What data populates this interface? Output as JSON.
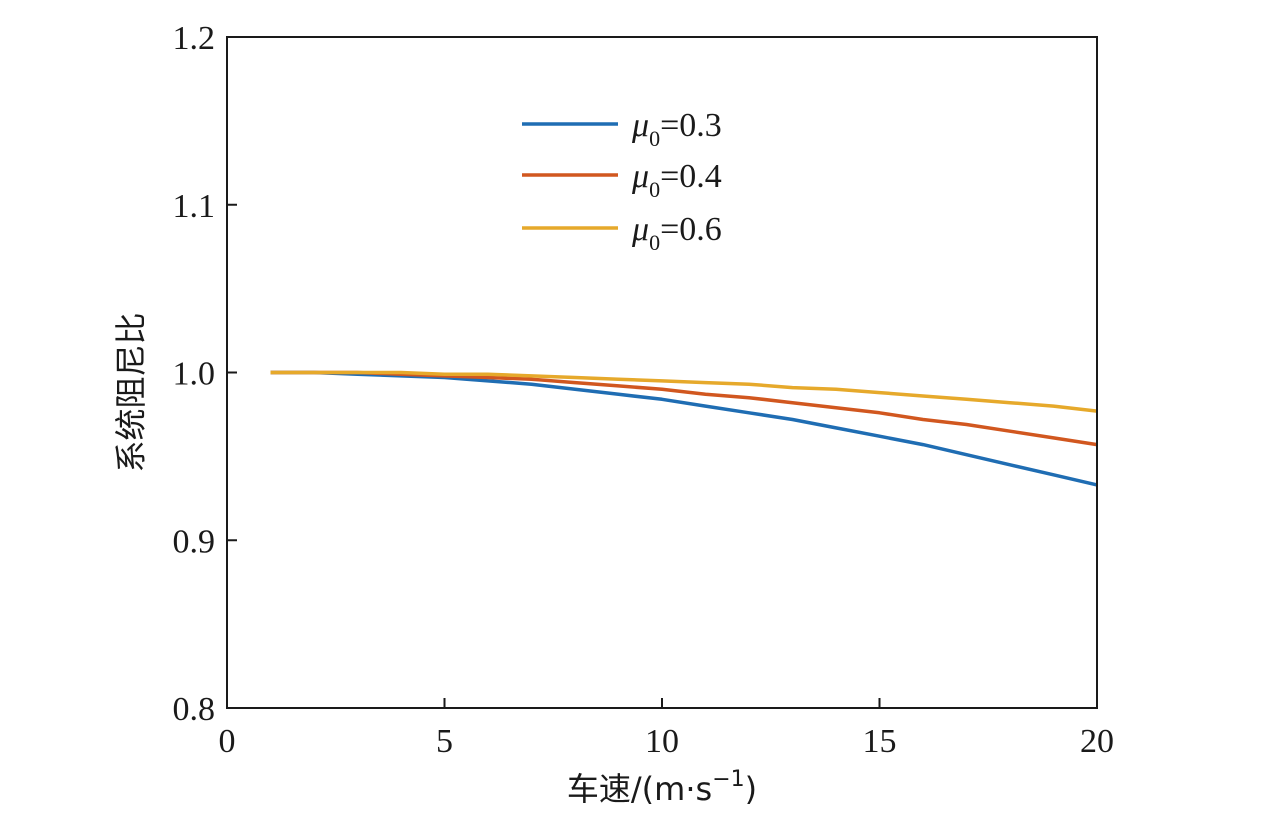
{
  "chart_data": {
    "type": "line",
    "title": "",
    "xlabel": "车速/(m·s",
    "xlabel_sup": "−1",
    "xlabel_close": ")",
    "ylabel": "系统阻尼比",
    "xlim": [
      0,
      20
    ],
    "ylim": [
      0.8,
      1.2
    ],
    "xticks": [
      0,
      5,
      10,
      15,
      20
    ],
    "xtick_labels": [
      "0",
      "5",
      "10",
      "15",
      "20"
    ],
    "yticks": [
      0.8,
      0.9,
      1.0,
      1.1,
      1.2
    ],
    "ytick_labels": [
      "0.8",
      "0.9",
      "1.0",
      "1.1",
      "1.2"
    ],
    "grid": false,
    "legend_position": "top-center",
    "series": [
      {
        "name": "μ0=0.3",
        "legend_symbol": "μ",
        "legend_sub": "0",
        "legend_value": "=0.3",
        "color": "#1f6db3",
        "x": [
          1,
          2,
          3,
          4,
          5,
          6,
          7,
          8,
          9,
          10,
          11,
          12,
          13,
          14,
          15,
          16,
          17,
          18,
          19,
          20
        ],
        "y": [
          1.0,
          1.0,
          0.999,
          0.998,
          0.997,
          0.995,
          0.993,
          0.99,
          0.987,
          0.984,
          0.98,
          0.976,
          0.972,
          0.967,
          0.962,
          0.957,
          0.951,
          0.945,
          0.939,
          0.933
        ]
      },
      {
        "name": "μ0=0.4",
        "legend_symbol": "μ",
        "legend_sub": "0",
        "legend_value": "=0.4",
        "color": "#d1571f",
        "x": [
          1,
          2,
          3,
          4,
          5,
          6,
          7,
          8,
          9,
          10,
          11,
          12,
          13,
          14,
          15,
          16,
          17,
          18,
          19,
          20
        ],
        "y": [
          1.0,
          1.0,
          1.0,
          0.999,
          0.998,
          0.997,
          0.996,
          0.994,
          0.992,
          0.99,
          0.987,
          0.985,
          0.982,
          0.979,
          0.976,
          0.972,
          0.969,
          0.965,
          0.961,
          0.957
        ]
      },
      {
        "name": "μ0=0.6",
        "legend_symbol": "μ",
        "legend_sub": "0",
        "legend_value": "=0.6",
        "color": "#e6a92b",
        "x": [
          1,
          2,
          3,
          4,
          5,
          6,
          7,
          8,
          9,
          10,
          11,
          12,
          13,
          14,
          15,
          16,
          17,
          18,
          19,
          20
        ],
        "y": [
          1.0,
          1.0,
          1.0,
          1.0,
          0.999,
          0.999,
          0.998,
          0.997,
          0.996,
          0.995,
          0.994,
          0.993,
          0.991,
          0.99,
          0.988,
          0.986,
          0.984,
          0.982,
          0.98,
          0.977
        ]
      }
    ]
  }
}
